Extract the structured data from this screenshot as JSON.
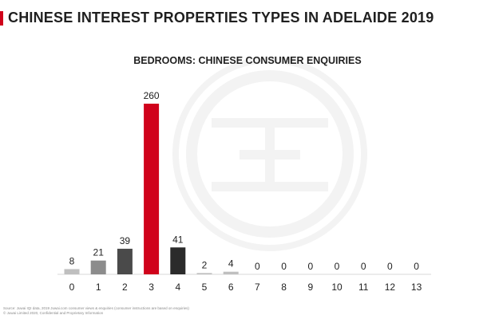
{
  "page_title": "CHINESE INTEREST PROPERTIES TYPES IN ADELAIDE 2019",
  "colors": {
    "accent": "#d0021b",
    "highlight": "#d0021b",
    "dark": "#2b2b2b",
    "mid": "#4a4a4a",
    "light": "#8c8c8c",
    "lightest": "#bfbfbf"
  },
  "chart_data": {
    "type": "bar",
    "title": "BEDROOMS: CHINESE CONSUMER ENQUIRIES",
    "xlabel": "",
    "ylabel": "",
    "categories": [
      "0",
      "1",
      "2",
      "3",
      "4",
      "5",
      "6",
      "7",
      "8",
      "9",
      "10",
      "11",
      "12",
      "13"
    ],
    "values": [
      8,
      21,
      39,
      260,
      41,
      2,
      4,
      0,
      0,
      0,
      0,
      0,
      0,
      0
    ],
    "bar_colors": [
      "#bfbfbf",
      "#8c8c8c",
      "#4a4a4a",
      "#d0021b",
      "#2b2b2b",
      "#bfbfbf",
      "#bfbfbf",
      "#bfbfbf",
      "#bfbfbf",
      "#bfbfbf",
      "#bfbfbf",
      "#bfbfbf",
      "#bfbfbf",
      "#bfbfbf"
    ],
    "ylim": [
      0,
      260
    ],
    "grid": false,
    "legend": "none"
  },
  "footer": {
    "line1": "Source: Juwai IQI data, 2019 Juwai.com consumer views & enquiries (consumer instructions are based on enquiries)",
    "line2": "© Juwai Limited 2020, Confidential and Proprietary Information"
  }
}
